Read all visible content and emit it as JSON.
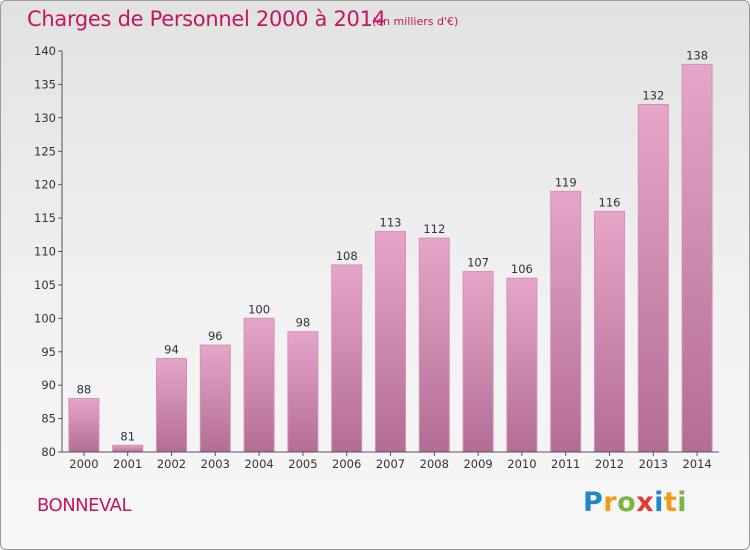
{
  "header": {
    "title": "Charges de Personnel 2000 à 2014",
    "unit_note": "(en milliers d'€)"
  },
  "footer": {
    "commune": "BONNEVAL",
    "brand_letters": [
      "P",
      "r",
      "o",
      "x",
      "i",
      "t",
      "i"
    ]
  },
  "colors": {
    "accent": "#c2185b",
    "bar_top": "#e5a6c9",
    "bar_bottom": "#b36d94",
    "bar_edge": "#d791b6",
    "brand_letter_colors": [
      "#1e88c8",
      "#f39c12",
      "#7cb342",
      "#e53935",
      "#1e88c8",
      "#f39c12",
      "#7cb342"
    ]
  },
  "chart_data": {
    "type": "bar",
    "title": "Charges de Personnel 2000 à 2014",
    "subtitle": "(en milliers d'€)",
    "xlabel": "",
    "ylabel": "",
    "categories": [
      "2000",
      "2001",
      "2002",
      "2003",
      "2004",
      "2005",
      "2006",
      "2007",
      "2008",
      "2009",
      "2010",
      "2011",
      "2012",
      "2013",
      "2014"
    ],
    "values": [
      88,
      81,
      94,
      96,
      100,
      98,
      108,
      113,
      112,
      107,
      106,
      119,
      116,
      132,
      138
    ],
    "ylim": [
      80,
      140
    ],
    "yticks": [
      80,
      85,
      90,
      95,
      100,
      105,
      110,
      115,
      120,
      125,
      130,
      135,
      140
    ],
    "grid": false,
    "legend": "none",
    "data_labels": true
  }
}
